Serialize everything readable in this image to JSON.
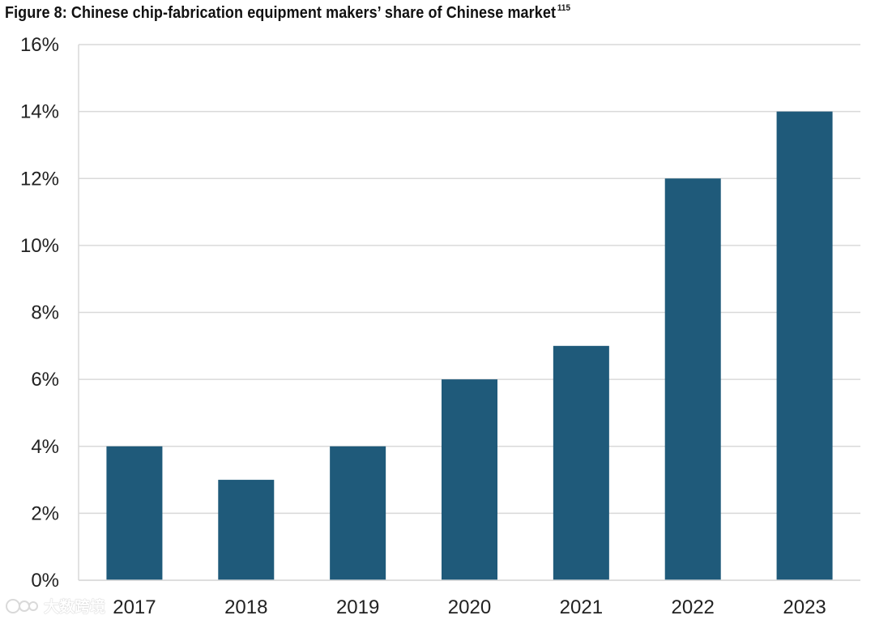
{
  "chart_data": {
    "type": "bar",
    "title": "Figure 8: Chinese chip-fabrication equipment makers’ share of Chinese market",
    "title_footnote": "115",
    "categories": [
      "2017",
      "2018",
      "2019",
      "2020",
      "2021",
      "2022",
      "2023"
    ],
    "values": [
      4,
      3,
      4,
      6,
      7,
      12,
      14
    ],
    "xlabel": "",
    "ylabel": "",
    "ylim": [
      0,
      16
    ],
    "yticks": [
      "0%",
      "2%",
      "4%",
      "6%",
      "8%",
      "10%",
      "12%",
      "14%",
      "16%"
    ],
    "grid": true,
    "legend": "none",
    "bar_color": "#1f5a7a"
  },
  "watermark": {
    "text": "大数跨境"
  }
}
